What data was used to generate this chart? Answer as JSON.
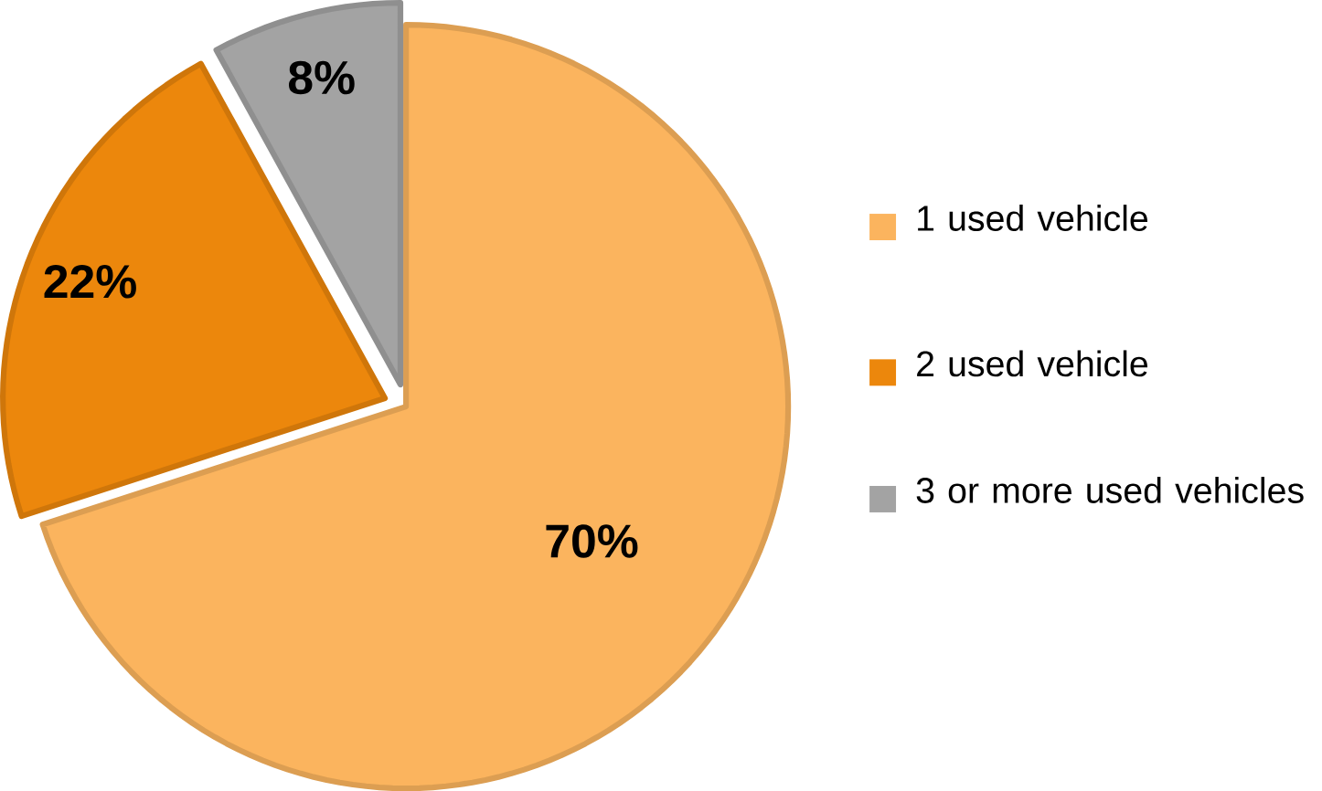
{
  "chart_data": {
    "type": "pie",
    "categories": [
      "1 used vehicle",
      "2 used vehicle",
      "3 or more used vehicles"
    ],
    "values": [
      70,
      22,
      8
    ],
    "value_labels": [
      "70%",
      "22%",
      "8%"
    ],
    "colors": [
      "#fbb45e",
      "#ec870c",
      "#a3a3a3"
    ],
    "legend": "right"
  }
}
